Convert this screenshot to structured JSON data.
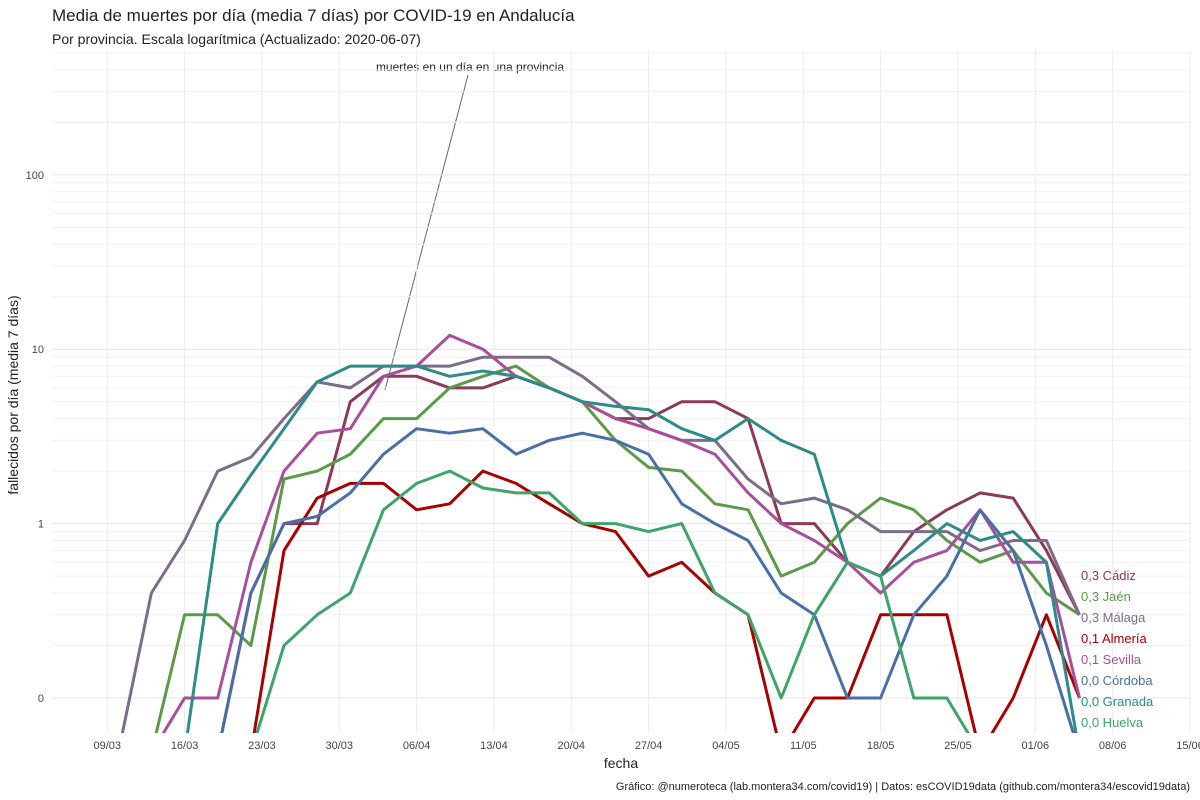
{
  "chart_data": {
    "type": "line",
    "title": "Media de muertes por día (media 7 días) por COVID-19 en Andalucía",
    "subtitle": "Por provincia. Escala logarítmica  (Actualizado: 2020-06-07)",
    "x_label": "fecha",
    "y_label": "fallecidos por día (media 7 días)",
    "annotation": "muertes en un día en una provincia",
    "caption": "Gráfico: @numeroteca (lab.montera34.com/covid19) | Datos: esCOVID19data (github.com/montera34/escovid19data)",
    "log_scale": true,
    "grid": true,
    "x": [
      "04/03",
      "07/03",
      "10/03",
      "13/03",
      "16/03",
      "19/03",
      "22/03",
      "25/03",
      "28/03",
      "31/03",
      "03/04",
      "06/04",
      "09/04",
      "12/04",
      "15/04",
      "18/04",
      "21/04",
      "24/04",
      "27/04",
      "30/04",
      "03/05",
      "06/05",
      "09/05",
      "12/05",
      "15/05",
      "18/05",
      "21/05",
      "24/05",
      "27/05",
      "30/05",
      "02/06",
      "05/06"
    ],
    "xlim": [
      "04/03",
      "15/06"
    ],
    "xticks": [
      "09/03",
      "16/03",
      "23/03",
      "30/03",
      "06/04",
      "13/04",
      "20/04",
      "27/04",
      "04/05",
      "11/05",
      "18/05",
      "25/05",
      "01/06",
      "08/06",
      "15/06"
    ],
    "ylim": [
      0.063,
      520
    ],
    "yticks": [
      {
        "value": 0.1,
        "label": "0"
      },
      1,
      10,
      100
    ],
    "series": [
      {
        "name": "Cádiz",
        "end_label": "0,3 Cádiz",
        "color": "#8b3a5a",
        "values": [
          0,
          0,
          0,
          0,
          0,
          0,
          0.4,
          1,
          1,
          5,
          7,
          7,
          6,
          6,
          7,
          6,
          5,
          4,
          4,
          5,
          5,
          4,
          1,
          1,
          0.6,
          0.5,
          0.9,
          1.2,
          1.5,
          1.4,
          0.7,
          0.3
        ]
      },
      {
        "name": "Jaén",
        "end_label": "0,3 Jaén",
        "color": "#5c9a4a",
        "values": [
          0,
          0,
          0,
          0,
          0.3,
          0.3,
          0.2,
          1.8,
          2,
          2.5,
          4,
          4,
          6,
          7,
          8,
          6,
          5,
          3,
          2.1,
          2,
          1.3,
          1.2,
          0.5,
          0.6,
          1,
          1.4,
          1.2,
          0.8,
          0.6,
          0.7,
          0.4,
          0.3
        ]
      },
      {
        "name": "Málaga",
        "end_label": "0,3 Málaga",
        "color": "#7d6b8a",
        "values": [
          0,
          0,
          0,
          0.4,
          0.8,
          2,
          2.4,
          4,
          6.5,
          6,
          8,
          8,
          8,
          9,
          9,
          9,
          7,
          5,
          3.5,
          3,
          3,
          1.8,
          1.3,
          1.4,
          1.2,
          0.9,
          0.9,
          0.9,
          0.7,
          0.8,
          0.8,
          0.3
        ]
      },
      {
        "name": "Almería",
        "end_label": "0,1 Almería",
        "color": "#a50000",
        "values": [
          0,
          0,
          0,
          0,
          0,
          0,
          0,
          0.7,
          1.4,
          1.7,
          1.7,
          1.2,
          1.3,
          2,
          1.7,
          1.3,
          1,
          0.9,
          0.5,
          0.6,
          0.4,
          0.3,
          0,
          0.1,
          0.1,
          0.3,
          0.3,
          0.3,
          0,
          0.1,
          0.3,
          0.1
        ]
      },
      {
        "name": "Sevilla",
        "end_label": "0,1 Sevilla",
        "color": "#a84f9b",
        "values": [
          0,
          0,
          0,
          0,
          0.1,
          0.1,
          0.6,
          2,
          3.3,
          3.5,
          7,
          8,
          12,
          10,
          7,
          6,
          5,
          4,
          3.5,
          3,
          2.5,
          1.5,
          1,
          0.8,
          0.6,
          0.4,
          0.6,
          0.7,
          1.2,
          0.6,
          0.6,
          0.1
        ]
      },
      {
        "name": "Córdoba",
        "end_label": "0,0 Córdoba",
        "color": "#4a6fa5",
        "values": [
          0,
          0,
          0,
          0,
          0,
          0,
          0.4,
          1,
          1.1,
          1.5,
          2.5,
          3.5,
          3.3,
          3.5,
          2.5,
          3,
          3.3,
          3,
          2.5,
          1.3,
          1,
          0.8,
          0.4,
          0.3,
          0.1,
          0.1,
          0.3,
          0.5,
          1.2,
          0.7,
          0.2,
          0
        ]
      },
      {
        "name": "Granada",
        "end_label": "0,0 Granada",
        "color": "#2f8a8a",
        "values": [
          0,
          0,
          0,
          0,
          0,
          1,
          1.9,
          3.5,
          6.5,
          8,
          8,
          8,
          7,
          7.5,
          7,
          6,
          5,
          4.7,
          4.5,
          3.5,
          3,
          4,
          3,
          2.5,
          0.6,
          0.5,
          0.7,
          1,
          0.8,
          0.9,
          0.6,
          0
        ]
      },
      {
        "name": "Huelva",
        "end_label": "0,0 Huelva",
        "color": "#3fa36a",
        "values": [
          0,
          0,
          0,
          0,
          0,
          0,
          0,
          0.2,
          0.3,
          0.4,
          1.2,
          1.7,
          2,
          1.6,
          1.5,
          1.5,
          1,
          1,
          0.9,
          1,
          0.4,
          0.3,
          0.1,
          0.3,
          0.6,
          0.5,
          0.1,
          0.1,
          0,
          0,
          0,
          0
        ]
      }
    ]
  }
}
